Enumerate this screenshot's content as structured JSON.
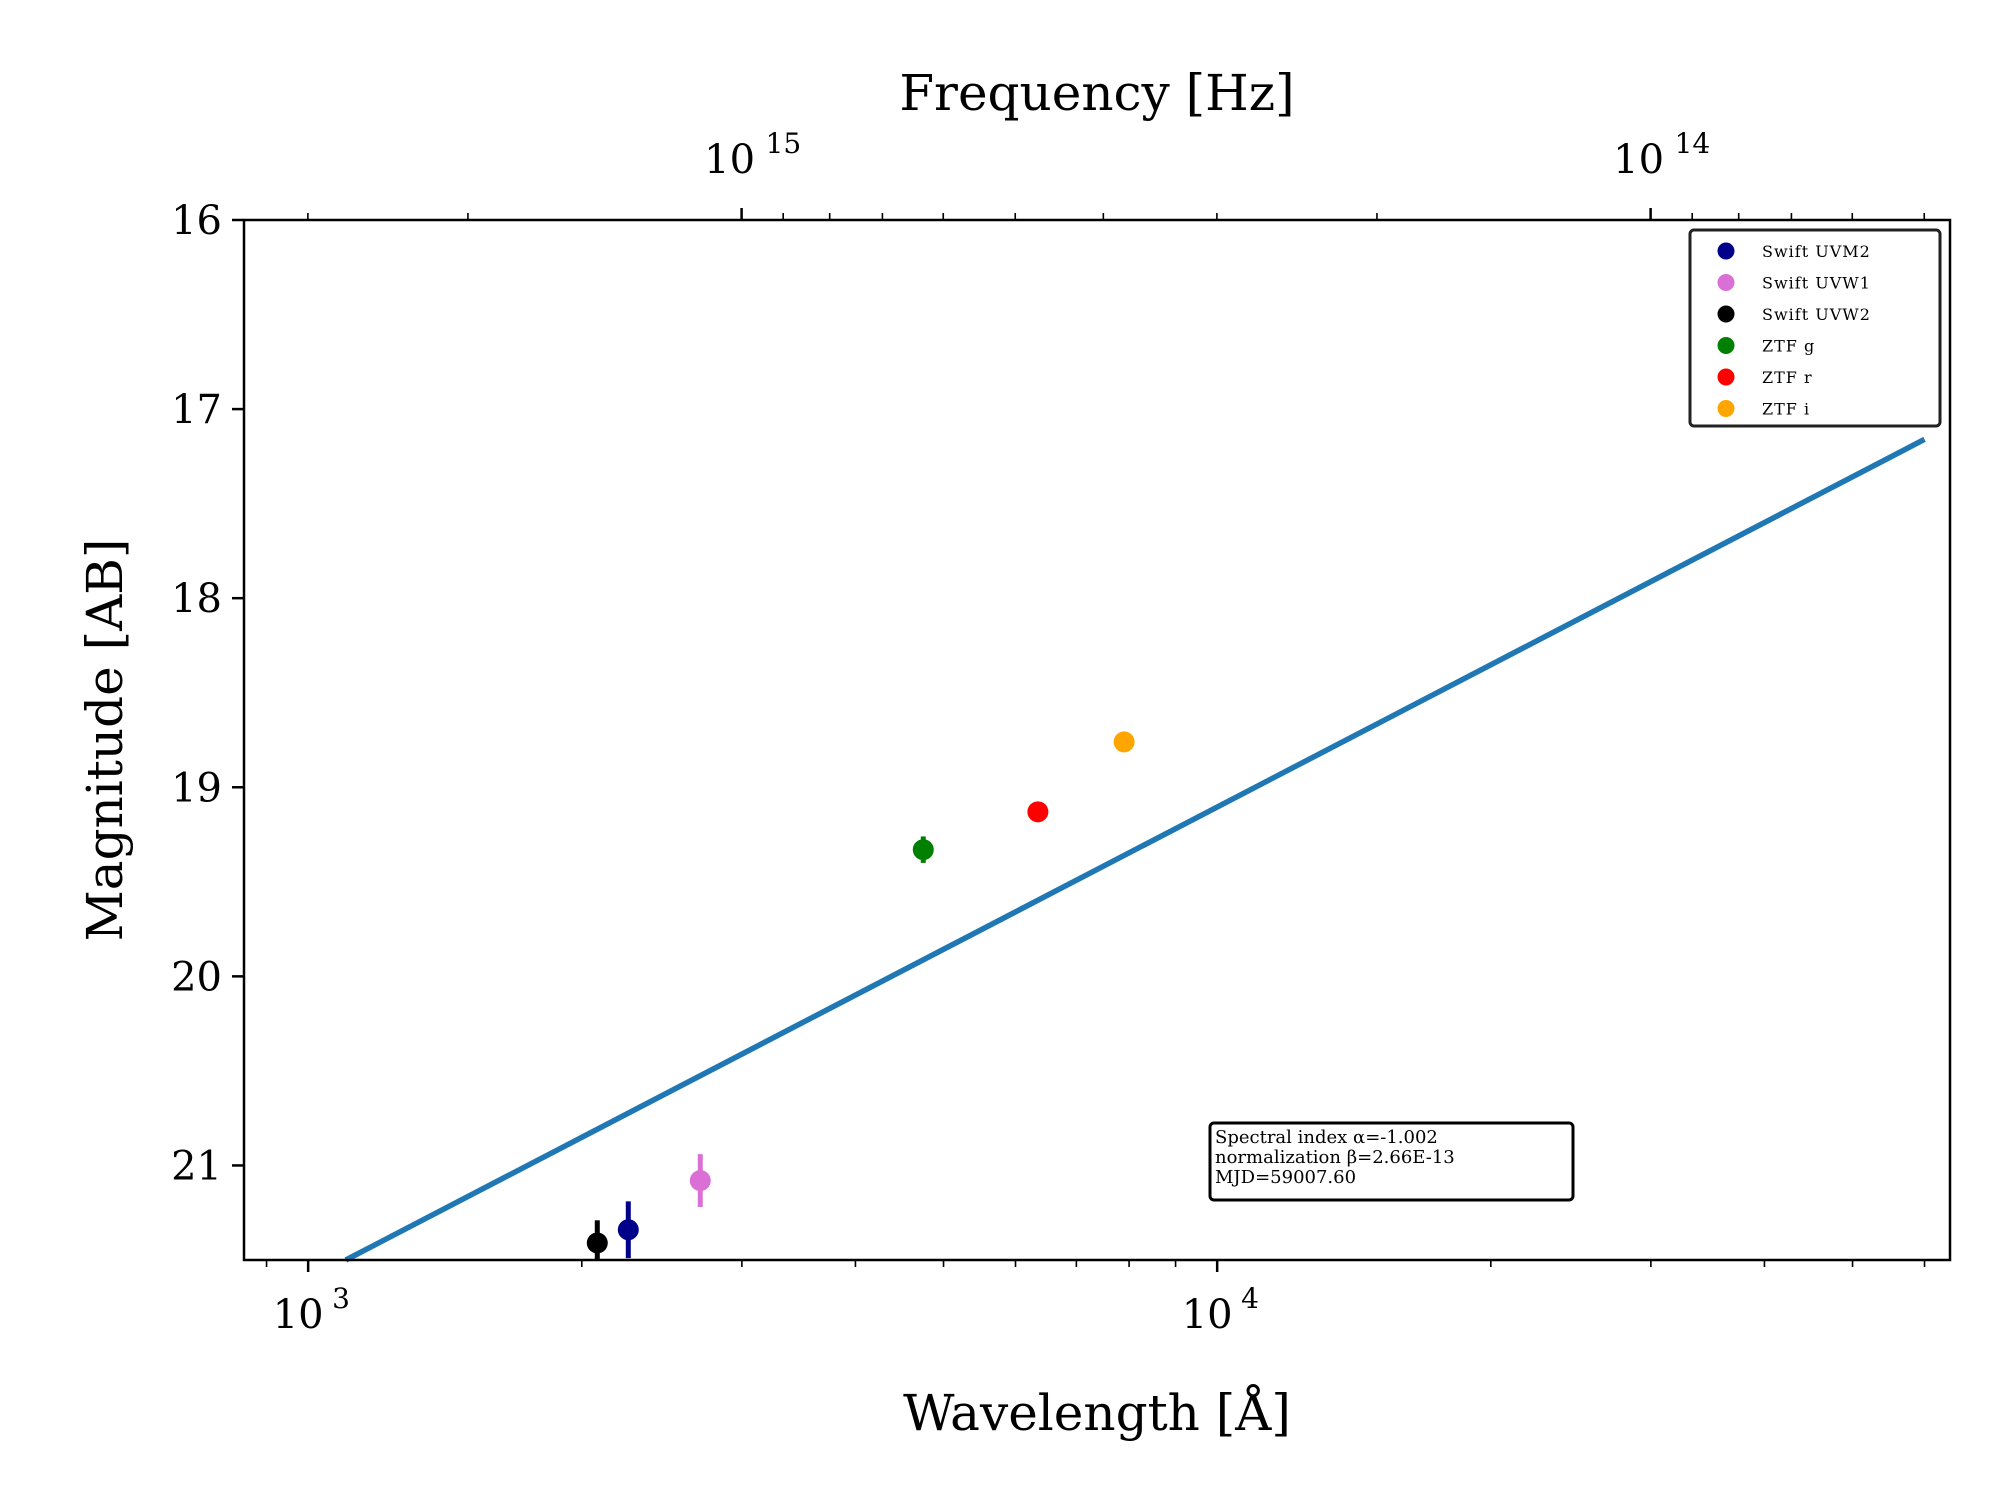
{
  "chart_data": {
    "type": "scatter",
    "title": "",
    "xlabel": "Wavelength [Å]",
    "ylabel": "Magnitude [AB]",
    "top_xlabel": "Frequency [Hz]",
    "x_scale": "log",
    "top_x_scale": "log",
    "xlim": [
      850,
      64000
    ],
    "ylim": [
      21.5,
      16
    ],
    "y_inverted": true,
    "x_ticks": [
      {
        "value": 1000,
        "base": "10",
        "exp": "3"
      },
      {
        "value": 10000,
        "base": "10",
        "exp": "4"
      }
    ],
    "top_x_ticks": [
      {
        "value": 1000000000000000.0,
        "base": "10",
        "exp": "15"
      },
      {
        "value": 100000000000000.0,
        "base": "10",
        "exp": "14"
      }
    ],
    "y_ticks": [
      16,
      17,
      18,
      19,
      20,
      21
    ],
    "grid": false,
    "legend_position": "top-right",
    "series": [
      {
        "name": "Swift UVM2",
        "color": "#00008b",
        "points": [
          {
            "x": 2250,
            "y": 21.34,
            "yerr": 0.15
          }
        ]
      },
      {
        "name": "Swift UVW1",
        "color": "#da70d6",
        "points": [
          {
            "x": 2700,
            "y": 21.08,
            "yerr": 0.14
          }
        ]
      },
      {
        "name": "Swift UVW2",
        "color": "#000000",
        "points": [
          {
            "x": 2080,
            "y": 21.41,
            "yerr": 0.12
          }
        ]
      },
      {
        "name": "ZTF g",
        "color": "#008000",
        "points": [
          {
            "x": 4750,
            "y": 19.33,
            "yerr": 0.07
          }
        ]
      },
      {
        "name": "ZTF r",
        "color": "#ff0000",
        "points": [
          {
            "x": 6350,
            "y": 19.13,
            "yerr": 0.05
          }
        ]
      },
      {
        "name": "ZTF i",
        "color": "#ffa500",
        "points": [
          {
            "x": 7900,
            "y": 18.76,
            "yerr": 0.03
          }
        ]
      }
    ],
    "fit_line": {
      "color": "#1f77b4",
      "points": [
        {
          "x": 1100,
          "y": 21.5
        },
        {
          "x": 60000,
          "y": 17.16
        }
      ]
    },
    "annotation": {
      "position": "lower-right",
      "lines": [
        "Spectral index α=-1.002",
        "normalization β=2.66E-13",
        "MJD=59007.60"
      ]
    }
  }
}
